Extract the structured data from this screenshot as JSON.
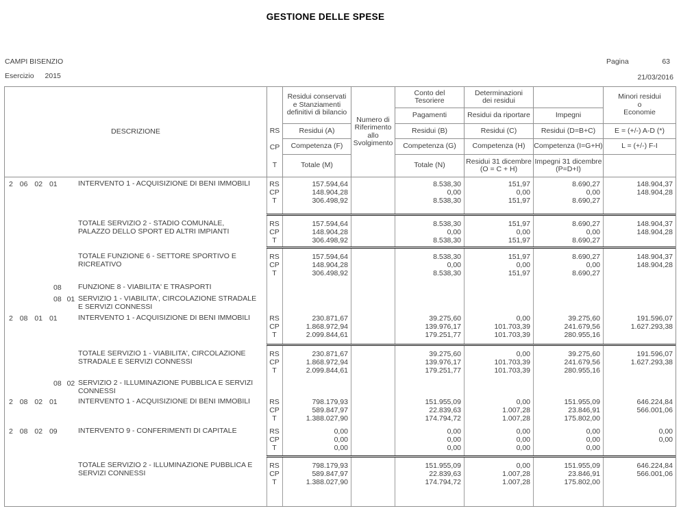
{
  "page": {
    "title": "GESTIONE DELLE SPESE",
    "entity": "CAMPI BISENZIO",
    "exercise_label": "Esercizio",
    "exercise_year": "2015",
    "page_label": "Pagina",
    "page_number": "63",
    "date": "21/03/2016"
  },
  "table": {
    "rs_markers": [
      "RS",
      "CP",
      "T"
    ],
    "header": {
      "descrizione": "DESCRIZIONE",
      "rs": "RS",
      "cp": "CP",
      "t": "T",
      "col_a_group": "Residui conservati\ne Stanziamenti\ndefinitivi di bilancio",
      "residui_a": "Residui (A)",
      "competenza_f": "Competenza (F)",
      "totale_m": "Totale (M)",
      "numero": "Numero di\nRiferimento\nallo\nSvolgimento",
      "conto_group": "Conto del\nTesoriere",
      "pagamenti": "Pagamenti",
      "residui_b": "Residui (B)",
      "competenza_g": "Competenza (G)",
      "totale_n": "Totale (N)",
      "det_group": "Determinazioni\ndei residui",
      "residui_da_riportare": "Residui da riportare",
      "residui_c": "Residui (C)",
      "competenza_h": "Competenza (H)",
      "residui_31": "Residui 31 dicembre\n(O = C + H)",
      "impegni": "Impegni",
      "residui_d": "Residui (D=B+C)",
      "competenza_i": "Competenza (I=G+H)",
      "impegni_31": "Impegni 31 dicembre\n(P=D+I)",
      "minori_group": "Minori residui\no\nEconomie",
      "e_formula": "E = (+/-) A-D (*)",
      "l_formula": "L = (+/-) F-I"
    },
    "rows": [
      {
        "type": "data",
        "code": "2 06 02 01",
        "code_indent": false,
        "divider_top": false,
        "desc": "INTERVENTO 1 - ACQUISIZIONE DI BENI IMMOBILI",
        "a": [
          "157.594,64",
          "148.904,28",
          "306.498,92"
        ],
        "b": [
          "8.538,30",
          "0,00",
          "8.538,30"
        ],
        "c": [
          "151,97",
          "0,00",
          "151,97"
        ],
        "d": [
          "8.690,27",
          "0,00",
          "8.690,27"
        ],
        "e": [
          "148.904,37",
          "148.904,28"
        ]
      },
      {
        "type": "total",
        "code": "",
        "code_indent": false,
        "divider_top": true,
        "desc": "TOTALE SERVIZIO 2 - STADIO COMUNALE, PALAZZO DELLO SPORT ED ALTRI IMPIANTI",
        "a": [
          "157.594,64",
          "148.904,28",
          "306.498,92"
        ],
        "b": [
          "8.538,30",
          "0,00",
          "8.538,30"
        ],
        "c": [
          "151,97",
          "0,00",
          "151,97"
        ],
        "d": [
          "8.690,27",
          "0,00",
          "8.690,27"
        ],
        "e": [
          "148.904,37",
          "148.904,28"
        ]
      },
      {
        "type": "total",
        "code": "",
        "code_indent": false,
        "divider_top": true,
        "desc": "TOTALE FUNZIONE 6 - SETTORE SPORTIVO E RICREATIVO",
        "a": [
          "157.594,64",
          "148.904,28",
          "306.498,92"
        ],
        "b": [
          "8.538,30",
          "0,00",
          "8.538,30"
        ],
        "c": [
          "151,97",
          "0,00",
          "151,97"
        ],
        "d": [
          "8.690,27",
          "0,00",
          "8.690,27"
        ],
        "e": [
          "148.904,37",
          "148.904,28"
        ]
      },
      {
        "type": "label",
        "code": "08",
        "code_indent": true,
        "divider_top": false,
        "desc": "FUNZIONE 8 - VIABILITA' E TRASPORTI",
        "a": [],
        "b": [],
        "c": [],
        "d": [],
        "e": []
      },
      {
        "type": "label",
        "code": "08 01",
        "code_indent": true,
        "divider_top": false,
        "desc": "SERVIZIO 1 - VIABILITA', CIRCOLAZIONE STRADALE E SERVIZI CONNESSI",
        "a": [],
        "b": [],
        "c": [],
        "d": [],
        "e": []
      },
      {
        "type": "data",
        "code": "2 08 01 01",
        "code_indent": false,
        "divider_top": false,
        "desc": "INTERVENTO 1 - ACQUISIZIONE DI BENI IMMOBILI",
        "a": [
          "230.871,67",
          "1.868.972,94",
          "2.099.844,61"
        ],
        "b": [
          "39.275,60",
          "139.976,17",
          "179.251,77"
        ],
        "c": [
          "0,00",
          "101.703,39",
          "101.703,39"
        ],
        "d": [
          "39.275,60",
          "241.679,56",
          "280.955,16"
        ],
        "e": [
          "191.596,07",
          "1.627.293,38"
        ]
      },
      {
        "type": "total",
        "code": "",
        "code_indent": false,
        "divider_top": true,
        "desc": "TOTALE SERVIZIO 1 - VIABILITA', CIRCOLAZIONE STRADALE E SERVIZI CONNESSI",
        "a": [
          "230.871,67",
          "1.868.972,94",
          "2.099.844,61"
        ],
        "b": [
          "39.275,60",
          "139.976,17",
          "179.251,77"
        ],
        "c": [
          "0,00",
          "101.703,39",
          "101.703,39"
        ],
        "d": [
          "39.275,60",
          "241.679,56",
          "280.955,16"
        ],
        "e": [
          "191.596,07",
          "1.627.293,38"
        ]
      },
      {
        "type": "label",
        "code": "08 02",
        "code_indent": true,
        "divider_top": false,
        "desc": "SERVIZIO 2 - ILLUMINAZIONE PUBBLICA E SERVIZI CONNESSI",
        "a": [],
        "b": [],
        "c": [],
        "d": [],
        "e": []
      },
      {
        "type": "data",
        "code": "2 08 02 01",
        "code_indent": false,
        "divider_top": false,
        "desc": "INTERVENTO 1 - ACQUISIZIONE DI BENI IMMOBILI",
        "a": [
          "798.179,93",
          "589.847,97",
          "1.388.027,90"
        ],
        "b": [
          "151.955,09",
          "22.839,63",
          "174.794,72"
        ],
        "c": [
          "0,00",
          "1.007,28",
          "1.007,28"
        ],
        "d": [
          "151.955,09",
          "23.846,91",
          "175.802,00"
        ],
        "e": [
          "646.224,84",
          "566.001,06"
        ]
      },
      {
        "type": "data",
        "code": "2 08 02 09",
        "code_indent": false,
        "divider_top": false,
        "desc": "INTERVENTO 9 - CONFERIMENTI DI CAPITALE",
        "a": [
          "0,00",
          "0,00",
          "0,00"
        ],
        "b": [
          "0,00",
          "0,00",
          "0,00"
        ],
        "c": [
          "0,00",
          "0,00",
          "0,00"
        ],
        "d": [
          "0,00",
          "0,00",
          "0,00"
        ],
        "e": [
          "0,00",
          "0,00"
        ]
      },
      {
        "type": "total",
        "code": "",
        "code_indent": false,
        "divider_top": true,
        "desc": "TOTALE SERVIZIO 2 - ILLUMINAZIONE PUBBLICA E SERVIZI CONNESSI",
        "a": [
          "798.179,93",
          "589.847,97",
          "1.388.027,90"
        ],
        "b": [
          "151.955,09",
          "22.839,63",
          "174.794,72"
        ],
        "c": [
          "0,00",
          "1.007,28",
          "1.007,28"
        ],
        "d": [
          "151.955,09",
          "23.846,91",
          "175.802,00"
        ],
        "e": [
          "646.224,84",
          "566.001,06"
        ]
      }
    ]
  }
}
